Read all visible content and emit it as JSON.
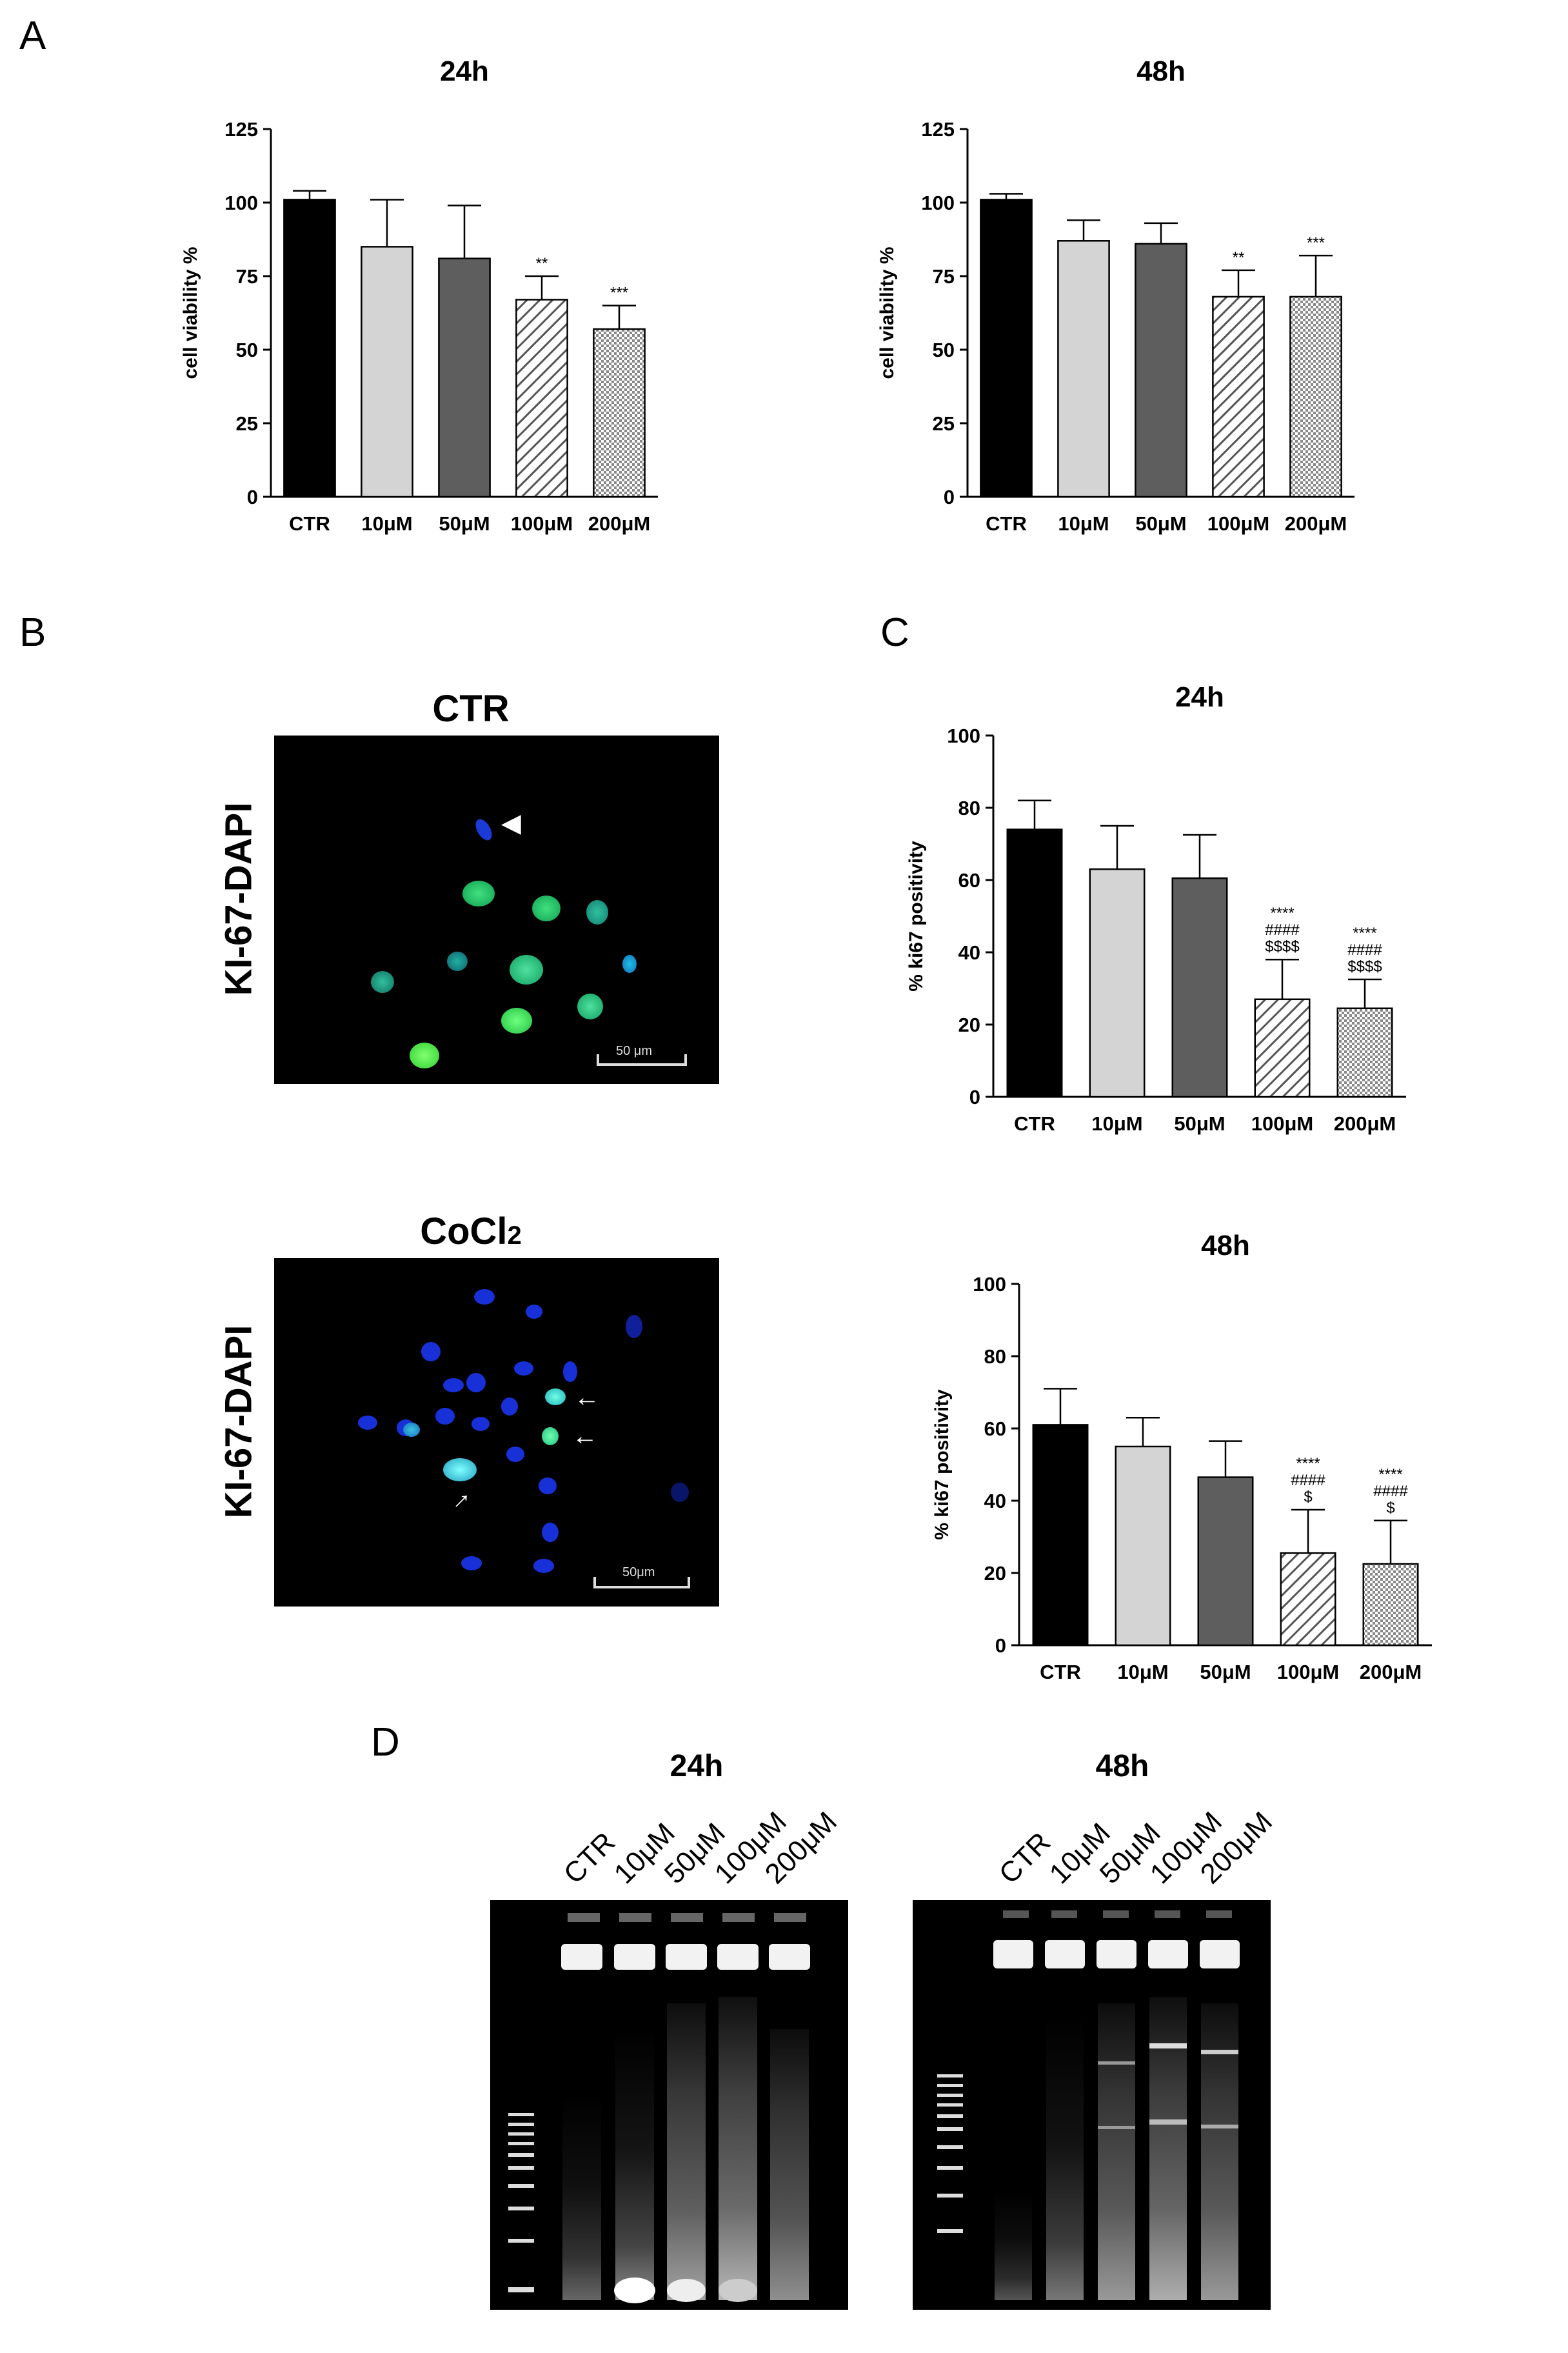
{
  "panels": {
    "A": "A",
    "B": "B",
    "C": "C",
    "D": "D"
  },
  "chart_data": [
    {
      "id": "A_24h",
      "type": "bar",
      "title": "24h",
      "ylabel": "cell viability %",
      "categories": [
        "CTR",
        "10μM",
        "50μM",
        "100μM",
        "200μM"
      ],
      "values": [
        101,
        85,
        81,
        67,
        57
      ],
      "errors": [
        3,
        16,
        18,
        8,
        8
      ],
      "significance": [
        "",
        "",
        "",
        "**",
        "***"
      ],
      "ylim": [
        0,
        125
      ],
      "yticks": [
        "0",
        "25",
        "50",
        "75",
        "100",
        "125"
      ],
      "fills": [
        "solid-black",
        "light-gray",
        "dark-gray",
        "hatch",
        "crosshatch"
      ]
    },
    {
      "id": "A_48h",
      "type": "bar",
      "title": "48h",
      "ylabel": "cell viability %",
      "categories": [
        "CTR",
        "10μM",
        "50μM",
        "100μM",
        "200μM"
      ],
      "values": [
        101,
        87,
        86,
        68,
        68
      ],
      "errors": [
        2,
        7,
        7,
        9,
        14
      ],
      "significance": [
        "",
        "",
        "",
        "**",
        "***"
      ],
      "ylim": [
        0,
        125
      ],
      "yticks": [
        "0",
        "25",
        "50",
        "75",
        "100",
        "125"
      ],
      "fills": [
        "solid-black",
        "light-gray",
        "dark-gray",
        "hatch",
        "crosshatch"
      ]
    },
    {
      "id": "C_24h",
      "type": "bar",
      "title": "24h",
      "ylabel": "% ki67 positivity",
      "categories": [
        "CTR",
        "10μM",
        "50μM",
        "100μM",
        "200μM"
      ],
      "values": [
        74,
        63,
        60.5,
        27,
        24.5
      ],
      "errors": [
        8,
        12,
        12,
        11,
        8
      ],
      "significance": [
        "",
        "",
        "",
        "****\n####\n$$$$",
        "****\n####\n$$$$"
      ],
      "ylim": [
        0,
        100
      ],
      "yticks": [
        "0",
        "20",
        "40",
        "60",
        "80",
        "100"
      ],
      "fills": [
        "solid-black",
        "light-gray",
        "dark-gray",
        "hatch",
        "crosshatch"
      ]
    },
    {
      "id": "C_48h",
      "type": "bar",
      "title": "48h",
      "ylabel": "% ki67 positivity",
      "categories": [
        "CTR",
        "10μM",
        "50μM",
        "100μM",
        "200μM"
      ],
      "values": [
        61,
        55,
        46.5,
        25.5,
        22.5
      ],
      "errors": [
        10,
        8,
        10,
        12,
        12
      ],
      "significance": [
        "",
        "",
        "",
        "****\n####\n$",
        "****\n####\n$"
      ],
      "ylim": [
        0,
        100
      ],
      "yticks": [
        "0",
        "20",
        "40",
        "60",
        "80",
        "100"
      ],
      "fills": [
        "solid-black",
        "light-gray",
        "dark-gray",
        "hatch",
        "crosshatch"
      ]
    }
  ],
  "microscopy": {
    "ctr": {
      "title": "CTR",
      "ylabel": "KI-67-DAPI",
      "scalebar": "50 μm"
    },
    "cocl2": {
      "title": "CoCl",
      "title_sub": "2",
      "ylabel": "KI-67-DAPI",
      "scalebar": "50μm"
    }
  },
  "gels": {
    "g24": {
      "title": "24h",
      "lanes": [
        "CTR",
        "10μM",
        "50μM",
        "100μM",
        "200μM"
      ]
    },
    "g48": {
      "title": "48h",
      "lanes": [
        "CTR",
        "10μM",
        "50μM",
        "100μM",
        "200μM"
      ]
    }
  }
}
